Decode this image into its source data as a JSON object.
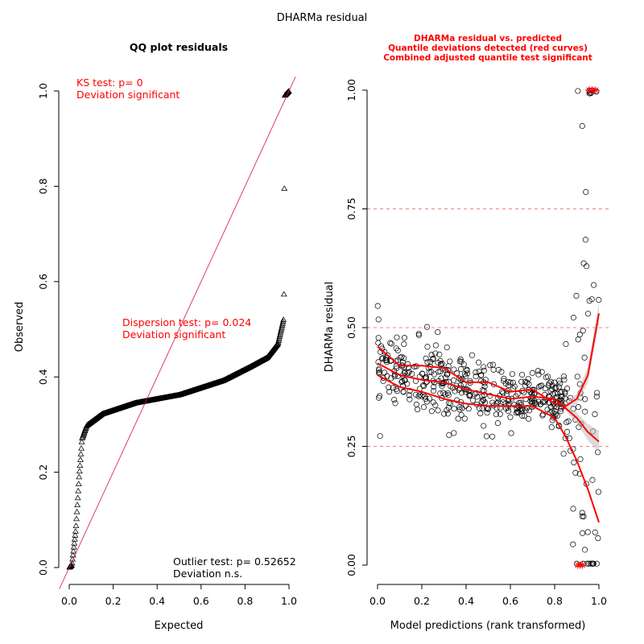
{
  "figure": {
    "title": "DHARMa residual"
  },
  "chart_data": [
    {
      "type": "scatter",
      "title": "QQ plot residuals",
      "xlabel": "Expected",
      "ylabel": "Observed",
      "xlim": [
        0,
        1
      ],
      "ylim": [
        0,
        1
      ],
      "x_ticks": [
        "0.0",
        "0.2",
        "0.4",
        "0.6",
        "0.8",
        "1.0"
      ],
      "y_ticks": [
        "0.0",
        "0.2",
        "0.4",
        "0.6",
        "0.8",
        "1.0"
      ],
      "reference_line": "identity",
      "marker": "triangle",
      "annotations": {
        "ks_1": "KS test: p= 0",
        "ks_2": "Deviation  significant",
        "disp_1": "Dispersion test: p= 0.024",
        "disp_2": "Deviation  significant",
        "out_1": "Outlier test: p= 0.52652",
        "out_2": "Deviation  n.s."
      },
      "annotation_color": "#ff0000",
      "observed_quantile_knots": [
        {
          "expected": 0.0,
          "observed": 0.0
        },
        {
          "expected": 0.012,
          "observed": 0.005
        },
        {
          "expected": 0.03,
          "observed": 0.08
        },
        {
          "expected": 0.045,
          "observed": 0.19
        },
        {
          "expected": 0.055,
          "observed": 0.25
        },
        {
          "expected": 0.058,
          "observed": 0.27
        },
        {
          "expected": 0.08,
          "observed": 0.298
        },
        {
          "expected": 0.15,
          "observed": 0.322
        },
        {
          "expected": 0.3,
          "observed": 0.345
        },
        {
          "expected": 0.5,
          "observed": 0.362
        },
        {
          "expected": 0.7,
          "observed": 0.392
        },
        {
          "expected": 0.82,
          "observed": 0.42
        },
        {
          "expected": 0.9,
          "observed": 0.44
        },
        {
          "expected": 0.95,
          "observed": 0.47
        },
        {
          "expected": 0.975,
          "observed": 0.52
        },
        {
          "expected": 0.978,
          "observed": 0.6
        },
        {
          "expected": 0.98,
          "observed": 0.99
        },
        {
          "expected": 1.0,
          "observed": 1.0
        }
      ],
      "n_points": 500
    },
    {
      "type": "scatter",
      "title_lines": [
        "DHARMa residual vs. predicted",
        "Quantile deviations detected (red curves)",
        "Combined adjusted quantile test significant"
      ],
      "title_color": "#ff0000",
      "xlabel": "Model predictions (rank transformed)",
      "ylabel": "DHARMa residual",
      "xlim": [
        0,
        1
      ],
      "ylim": [
        0,
        1
      ],
      "x_ticks": [
        "0.0",
        "0.2",
        "0.4",
        "0.6",
        "0.8",
        "1.0"
      ],
      "y_ticks": [
        "0.00",
        "0.25",
        "0.50",
        "0.75",
        "1.00"
      ],
      "reference_lines": [
        0.25,
        0.5,
        0.75
      ],
      "marker": "open-circle",
      "outlier_marker": "red-star",
      "n_points": 500,
      "quantile_curves": [
        {
          "quantile": 0.25,
          "x": [
            0.0,
            0.1,
            0.2,
            0.3,
            0.4,
            0.5,
            0.6,
            0.7,
            0.8,
            0.85,
            0.9,
            0.95,
            1.0
          ],
          "y": [
            0.4,
            0.375,
            0.365,
            0.35,
            0.34,
            0.335,
            0.335,
            0.335,
            0.31,
            0.27,
            0.22,
            0.16,
            0.09
          ]
        },
        {
          "quantile": 0.5,
          "x": [
            0.0,
            0.1,
            0.2,
            0.3,
            0.4,
            0.5,
            0.6,
            0.7,
            0.8,
            0.85,
            0.9,
            0.95,
            1.0
          ],
          "y": [
            0.425,
            0.4,
            0.39,
            0.385,
            0.37,
            0.36,
            0.35,
            0.355,
            0.35,
            0.33,
            0.31,
            0.28,
            0.26
          ]
        },
        {
          "quantile": 0.75,
          "x": [
            0.0,
            0.1,
            0.2,
            0.3,
            0.4,
            0.5,
            0.6,
            0.7,
            0.8,
            0.85,
            0.9,
            0.95,
            1.0
          ],
          "y": [
            0.46,
            0.42,
            0.42,
            0.415,
            0.385,
            0.385,
            0.365,
            0.37,
            0.34,
            0.335,
            0.35,
            0.4,
            0.53
          ]
        }
      ],
      "high_outliers": {
        "x_range": [
          0.95,
          0.99
        ],
        "y": 1.0
      },
      "low_outliers": {
        "x_range": [
          0.9,
          0.93
        ],
        "y": 0.0
      }
    }
  ]
}
